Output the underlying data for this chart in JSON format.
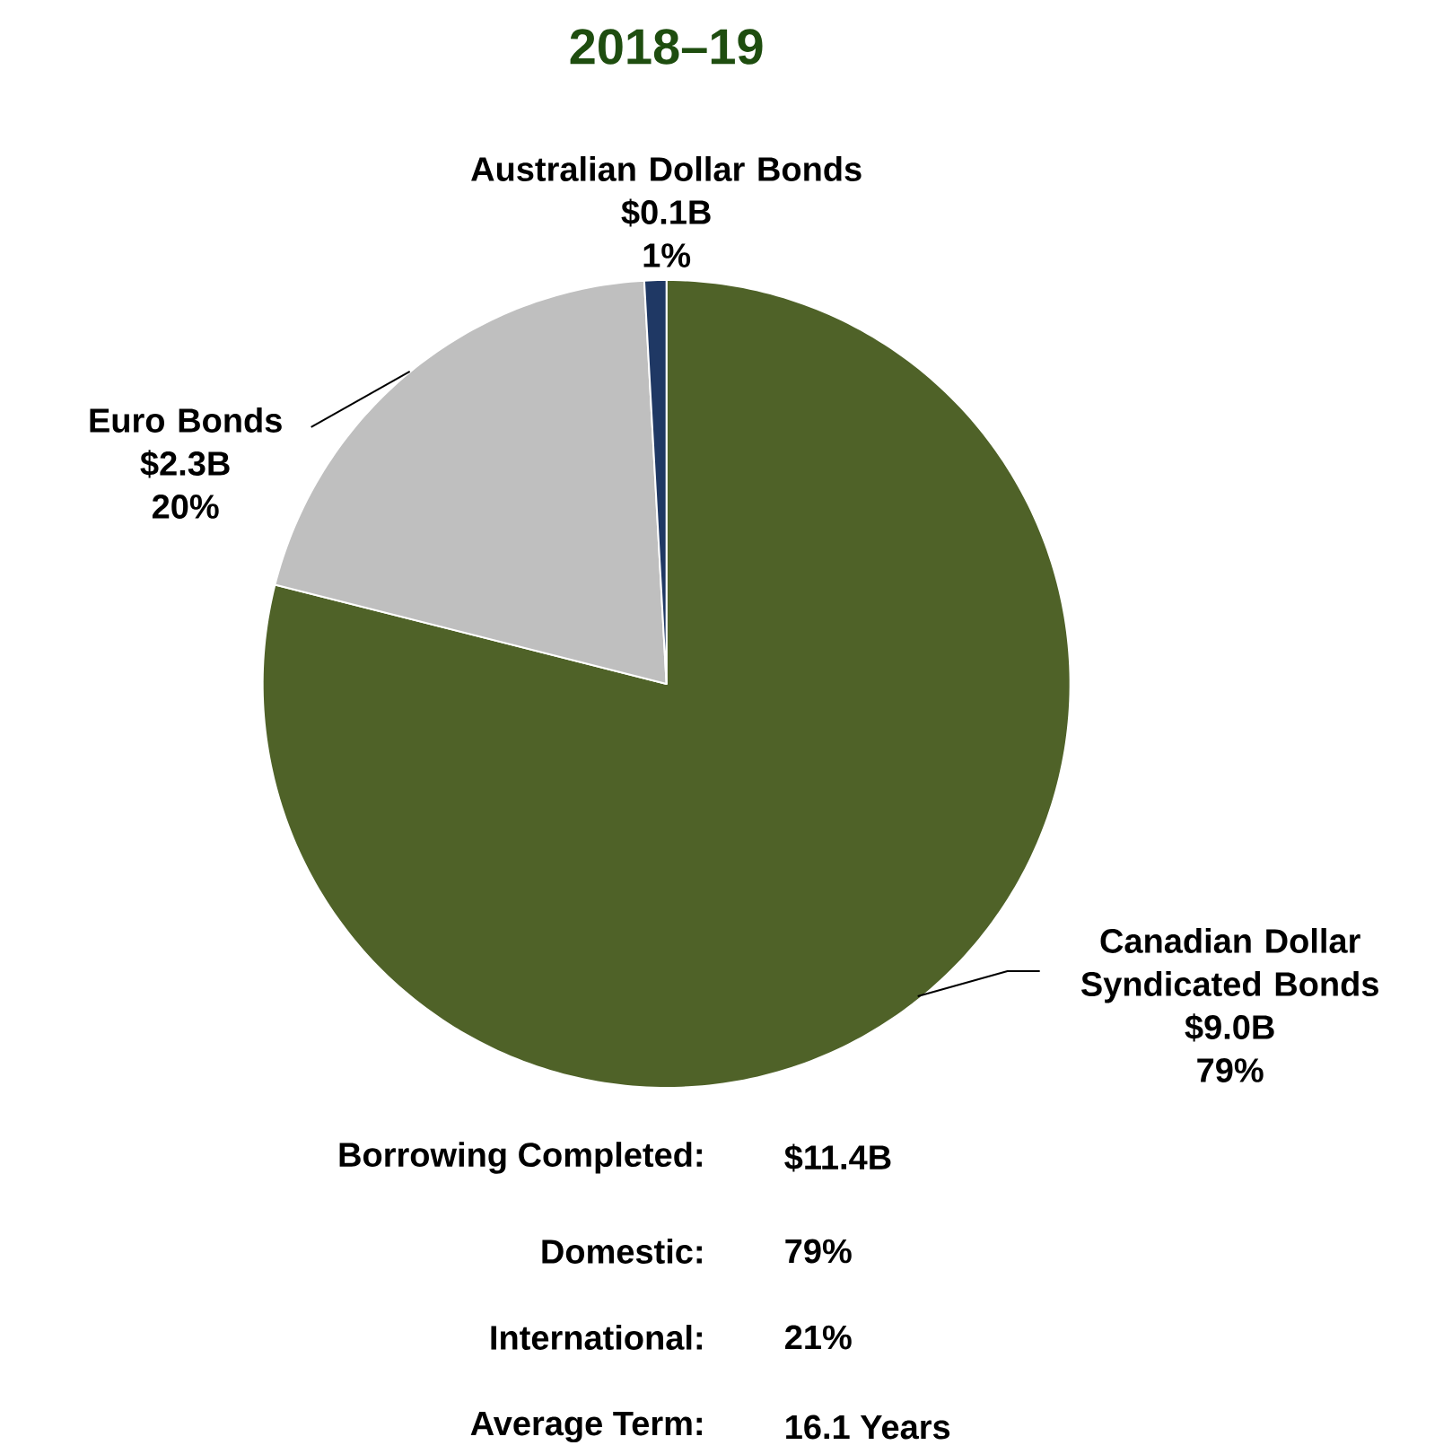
{
  "chart_data": {
    "type": "pie",
    "title": "2018–19",
    "categories": [
      "Canadian Dollar Syndicated Bonds",
      "Euro Bonds",
      "Australian Dollar Bonds"
    ],
    "values": [
      9.0,
      2.3,
      0.1
    ],
    "colors": [
      "#4f6228",
      "#bfbfbf",
      "#1f3864"
    ],
    "value_labels": [
      "$9.0B",
      "$2.3B",
      "$0.1B"
    ],
    "annotations": [
      "79%",
      "20%",
      "1%",
      "Borrowing Completed:",
      "$11.4B",
      "Domestic:",
      "79%",
      "International:",
      "21%",
      "Average Term:",
      "16.1 Years"
    ]
  }
}
